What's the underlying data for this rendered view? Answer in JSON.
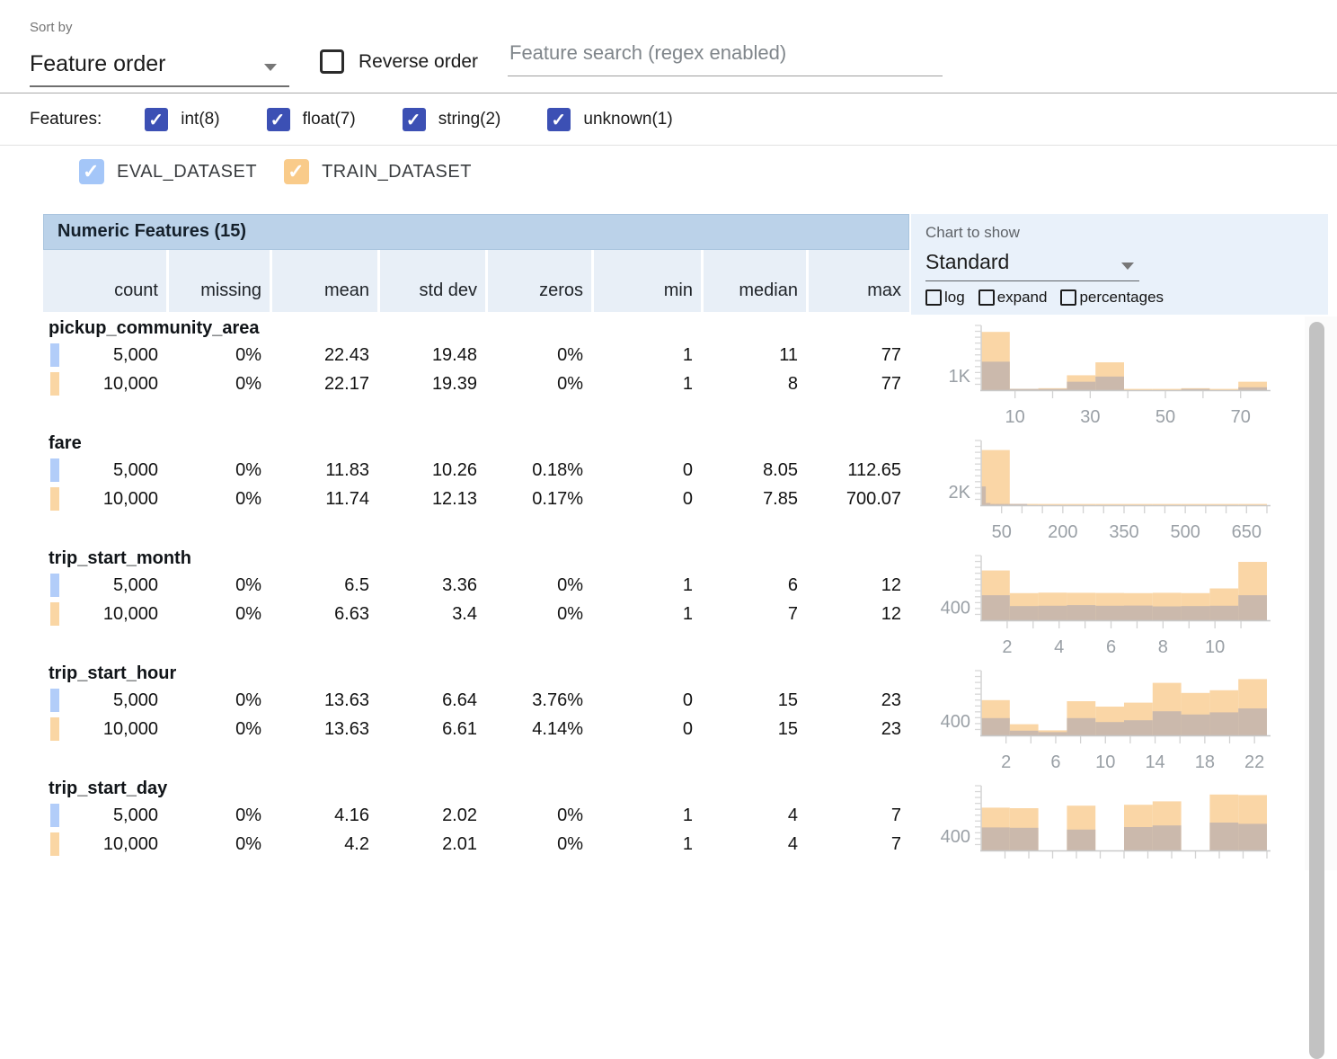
{
  "toolbar": {
    "sort_by_label": "Sort by",
    "sort_value": "Feature order",
    "reverse_label": "Reverse order",
    "search_placeholder": "Feature search (regex enabled)"
  },
  "filters": {
    "label": "Features:",
    "items": [
      {
        "type": "int",
        "label": "int(8)",
        "checked": true
      },
      {
        "type": "float",
        "label": "float(7)",
        "checked": true
      },
      {
        "type": "string",
        "label": "string(2)",
        "checked": true
      },
      {
        "type": "unknown",
        "label": "unknown(1)",
        "checked": true
      }
    ],
    "checkbox_color": "#3c50b4"
  },
  "dataset_legend": {
    "items": [
      {
        "name": "EVAL_DATASET",
        "checked": true,
        "checkbox_color": "#a4c6f8",
        "swatch": "#b2cdf9"
      },
      {
        "name": "TRAIN_DATASET",
        "checked": true,
        "checkbox_color": "#f9cb8a",
        "swatch": "#fad6a4"
      }
    ]
  },
  "table": {
    "title": "Numeric Features (15)",
    "columns": [
      "count",
      "missing",
      "mean",
      "std dev",
      "zeros",
      "min",
      "median",
      "max"
    ]
  },
  "chart_controls": {
    "label": "Chart to show",
    "value": "Standard",
    "options": [
      {
        "label": "log",
        "checked": false
      },
      {
        "label": "expand",
        "checked": false
      },
      {
        "label": "percentages",
        "checked": false
      }
    ]
  },
  "icons": {
    "checkmark": "✓"
  },
  "colors": {
    "train_bar": "#fad6a6",
    "eval_overlap_bar": "#cbb9ac",
    "header_band": "#bbd2e9",
    "header_cells": "#e8eff7",
    "chart_panel": "#e9f1fa",
    "filter_checkbox": "#3c50b4"
  },
  "features": [
    {
      "name": "pickup_community_area",
      "rows": [
        {
          "dataset": "EVAL_DATASET",
          "count": "5,000",
          "missing": "0%",
          "mean": "22.43",
          "std_dev": "19.48",
          "zeros": "0%",
          "min": "1",
          "median": "11",
          "max": "77"
        },
        {
          "dataset": "TRAIN_DATASET",
          "count": "10,000",
          "missing": "0%",
          "mean": "22.17",
          "std_dev": "19.39",
          "zeros": "0%",
          "min": "1",
          "median": "8",
          "max": "77"
        }
      ]
    },
    {
      "name": "fare",
      "rows": [
        {
          "dataset": "EVAL_DATASET",
          "count": "5,000",
          "missing": "0%",
          "mean": "11.83",
          "std_dev": "10.26",
          "zeros": "0.18%",
          "min": "0",
          "median": "8.05",
          "max": "112.65"
        },
        {
          "dataset": "TRAIN_DATASET",
          "count": "10,000",
          "missing": "0%",
          "mean": "11.74",
          "std_dev": "12.13",
          "zeros": "0.17%",
          "min": "0",
          "median": "7.85",
          "max": "700.07"
        }
      ]
    },
    {
      "name": "trip_start_month",
      "rows": [
        {
          "dataset": "EVAL_DATASET",
          "count": "5,000",
          "missing": "0%",
          "mean": "6.5",
          "std_dev": "3.36",
          "zeros": "0%",
          "min": "1",
          "median": "6",
          "max": "12"
        },
        {
          "dataset": "TRAIN_DATASET",
          "count": "10,000",
          "missing": "0%",
          "mean": "6.63",
          "std_dev": "3.4",
          "zeros": "0%",
          "min": "1",
          "median": "7",
          "max": "12"
        }
      ]
    },
    {
      "name": "trip_start_hour",
      "rows": [
        {
          "dataset": "EVAL_DATASET",
          "count": "5,000",
          "missing": "0%",
          "mean": "13.63",
          "std_dev": "6.64",
          "zeros": "3.76%",
          "min": "0",
          "median": "15",
          "max": "23"
        },
        {
          "dataset": "TRAIN_DATASET",
          "count": "10,000",
          "missing": "0%",
          "mean": "13.63",
          "std_dev": "6.61",
          "zeros": "4.14%",
          "min": "0",
          "median": "15",
          "max": "23"
        }
      ]
    },
    {
      "name": "trip_start_day",
      "rows": [
        {
          "dataset": "EVAL_DATASET",
          "count": "5,000",
          "missing": "0%",
          "mean": "4.16",
          "std_dev": "2.02",
          "zeros": "0%",
          "min": "1",
          "median": "4",
          "max": "7"
        },
        {
          "dataset": "TRAIN_DATASET",
          "count": "10,000",
          "missing": "0%",
          "mean": "4.2",
          "std_dev": "2.01",
          "zeros": "0%",
          "min": "1",
          "median": "4",
          "max": "7"
        }
      ]
    }
  ],
  "chart_data": [
    {
      "type": "bar",
      "feature": "pickup_community_area",
      "x_range": [
        1,
        77
      ],
      "x_tick_labels": [
        10,
        30,
        50,
        70
      ],
      "x_ticks": [
        10,
        20,
        30,
        40,
        50,
        60,
        70
      ],
      "y_max": 4500,
      "y_tick": {
        "value": 1000,
        "label": "1K"
      },
      "series": [
        {
          "name": "TRAIN_DATASET",
          "color": "#fad6a6",
          "bin_start": 1,
          "bin_width": 7.6,
          "counts": [
            4050,
            45,
            135,
            1035,
            1935,
            20,
            20,
            135,
            20,
            585
          ]
        },
        {
          "name": "EVAL_DATASET",
          "color": "#cbb9ac",
          "bin_start": 1,
          "bin_width": 7.6,
          "counts": [
            1980,
            20,
            70,
            585,
            945,
            0,
            0,
            20,
            0,
            200
          ]
        }
      ]
    },
    {
      "type": "bar",
      "feature": "fare",
      "x_range": [
        0,
        700
      ],
      "x_tick_labels": [
        50,
        200,
        350,
        500,
        650
      ],
      "x_ticks": [
        50,
        100,
        150,
        200,
        250,
        300,
        350,
        400,
        450,
        500,
        550,
        600,
        650,
        700
      ],
      "y_max": 9500,
      "y_tick": {
        "value": 2000,
        "label": "2K"
      },
      "series": [
        {
          "name": "TRAIN_DATASET",
          "color": "#fad6a6",
          "bin_start": 0,
          "bin_width": 70,
          "counts": [
            8100,
            190,
            40,
            20,
            10,
            10,
            5,
            3,
            2,
            10
          ]
        },
        {
          "name": "EVAL_DATASET",
          "color": "#cbb9ac",
          "bin_start": 0,
          "bin_width": 11.27,
          "counts": [
            2755,
            330,
            95,
            48,
            28,
            19,
            10,
            10,
            4,
            4
          ]
        }
      ]
    },
    {
      "type": "bar",
      "feature": "trip_start_month",
      "x_range": [
        1,
        12
      ],
      "x_tick_labels": [
        2,
        4,
        6,
        8,
        10
      ],
      "x_ticks": [
        2,
        3,
        4,
        5,
        6,
        7,
        8,
        9,
        10,
        11
      ],
      "y_max": 2000,
      "y_tick": {
        "value": 400,
        "label": "400"
      },
      "series": [
        {
          "name": "TRAIN_DATASET",
          "color": "#fad6a6",
          "bin_start": 1,
          "bin_width": 1.1,
          "counts": [
            1540,
            840,
            855,
            850,
            845,
            840,
            850,
            840,
            985,
            1805
          ]
        },
        {
          "name": "EVAL_DATASET",
          "color": "#cbb9ac",
          "bin_start": 1,
          "bin_width": 1.1,
          "counts": [
            775,
            440,
            450,
            470,
            450,
            455,
            430,
            440,
            450,
            775
          ]
        }
      ]
    },
    {
      "type": "bar",
      "feature": "trip_start_hour",
      "x_range": [
        0,
        23
      ],
      "x_tick_labels": [
        2,
        6,
        10,
        14,
        18,
        22
      ],
      "x_ticks": [
        2,
        4,
        6,
        8,
        10,
        12,
        14,
        16,
        18,
        20,
        22
      ],
      "y_max": 1800,
      "y_tick": {
        "value": 400,
        "label": "400"
      },
      "series": [
        {
          "name": "TRAIN_DATASET",
          "color": "#fad6a6",
          "bin_start": 0,
          "bin_width": 2.3,
          "counts": [
            980,
            310,
            140,
            950,
            800,
            910,
            1460,
            1180,
            1255,
            1565
          ]
        },
        {
          "name": "EVAL_DATASET",
          "color": "#cbb9ac",
          "bin_start": 0,
          "bin_width": 2.3,
          "counts": [
            480,
            130,
            90,
            480,
            370,
            420,
            670,
            580,
            640,
            750
          ]
        }
      ]
    },
    {
      "type": "bar",
      "feature": "trip_start_day",
      "x_range": [
        1,
        7
      ],
      "x_tick_labels": [],
      "x_ticks": [
        1.5,
        2,
        2.5,
        3,
        3.5,
        4,
        4.5,
        5,
        5.5,
        6,
        6.5,
        7
      ],
      "y_max": 1800,
      "y_tick": {
        "value": 400,
        "label": "400"
      },
      "series": [
        {
          "name": "TRAIN_DATASET",
          "color": "#fad6a6",
          "bin_start": 1,
          "bin_width": 0.6,
          "counts": [
            1190,
            1175,
            0,
            1245,
            0,
            1270,
            1365,
            0,
            1555,
            1540
          ]
        },
        {
          "name": "EVAL_DATASET",
          "color": "#cbb9ac",
          "bin_start": 1,
          "bin_width": 0.6,
          "counts": [
            640,
            630,
            0,
            580,
            0,
            650,
            695,
            0,
            775,
            740
          ]
        }
      ]
    }
  ]
}
